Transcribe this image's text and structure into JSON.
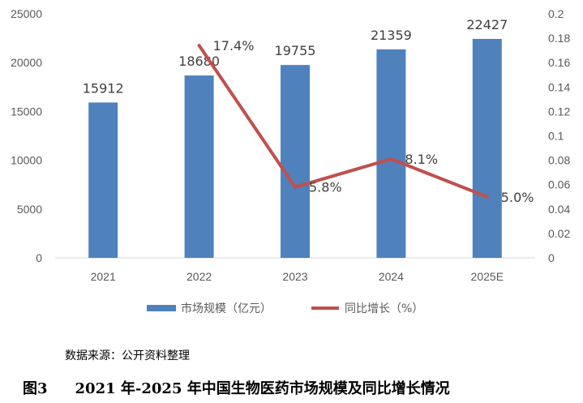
{
  "chart_data": {
    "type": "bar+line",
    "categories": [
      "2021",
      "2022",
      "2023",
      "2024",
      "2025E"
    ],
    "series": [
      {
        "name": "市场规模（亿元）",
        "type": "bar",
        "axis": "left",
        "color": "#4f81bd",
        "values": [
          15912,
          18680,
          19755,
          21359,
          22427
        ],
        "labels": [
          "15912",
          "18680",
          "19755",
          "21359",
          "22427"
        ]
      },
      {
        "name": "同比增长（%）",
        "type": "line",
        "axis": "right",
        "color": "#c0504d",
        "values": [
          null,
          0.174,
          0.058,
          0.081,
          0.05
        ],
        "labels": [
          "",
          "17.4%",
          "5.8%",
          "8.1%",
          "5.0%"
        ]
      }
    ],
    "y_left": {
      "min": 0,
      "max": 25000,
      "ticks": [
        "0",
        "5000",
        "10000",
        "15000",
        "20000",
        "25000"
      ]
    },
    "y_right": {
      "min": 0,
      "max": 0.2,
      "ticks": [
        "0",
        "0.02",
        "0.04",
        "0.06",
        "0.08",
        "0.1",
        "0.12",
        "0.14",
        "0.16",
        "0.18",
        "0.2"
      ]
    },
    "legend_position": "bottom-center",
    "grid": false
  },
  "source_note": "数据来源：公开资料整理",
  "caption": {
    "figure_no": "图3",
    "title": "2021 年-2025 年中国生物医药市场规模及同比增长情况"
  }
}
